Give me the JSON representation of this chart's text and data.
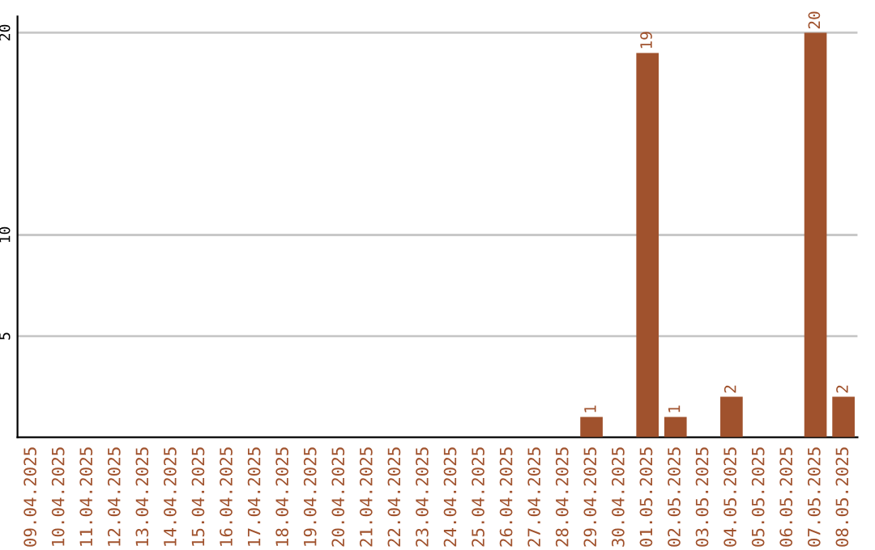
{
  "chart_data": {
    "type": "bar",
    "categories": [
      "09.04.2025",
      "10.04.2025",
      "11.04.2025",
      "12.04.2025",
      "13.04.2025",
      "14.04.2025",
      "15.04.2025",
      "16.04.2025",
      "17.04.2025",
      "18.04.2025",
      "19.04.2025",
      "20.04.2025",
      "21.04.2025",
      "22.04.2025",
      "23.04.2025",
      "24.04.2025",
      "25.04.2025",
      "26.04.2025",
      "27.04.2025",
      "28.04.2025",
      "29.04.2025",
      "30.04.2025",
      "01.05.2025",
      "02.05.2025",
      "03.05.2025",
      "04.05.2025",
      "05.05.2025",
      "06.05.2025",
      "07.05.2025",
      "08.05.2025"
    ],
    "values": [
      0,
      0,
      0,
      0,
      0,
      0,
      0,
      0,
      0,
      0,
      0,
      0,
      0,
      0,
      0,
      0,
      0,
      0,
      0,
      0,
      1,
      0,
      19,
      1,
      0,
      2,
      0,
      0,
      20,
      2
    ],
    "value_labels": [
      null,
      null,
      null,
      null,
      null,
      null,
      null,
      null,
      null,
      null,
      null,
      null,
      null,
      null,
      null,
      null,
      null,
      null,
      null,
      null,
      "1",
      null,
      "19",
      "1",
      null,
      "2",
      null,
      null,
      "20",
      "2"
    ],
    "color": "#a0522d",
    "ylim": [
      0,
      20.8
    ],
    "yticks": [
      5,
      10,
      20
    ],
    "grid": "y",
    "legend": false
  }
}
